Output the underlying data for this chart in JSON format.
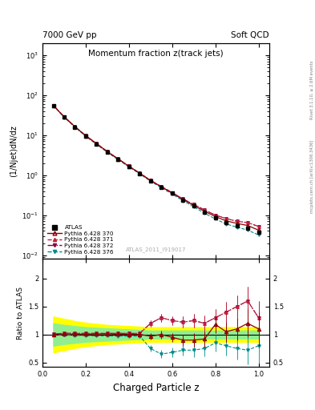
{
  "title_main": "Momentum fraction z(track jets)",
  "header_left": "7000 GeV pp",
  "header_right": "Soft QCD",
  "watermark": "ATLAS_2011_I919017",
  "right_label_top": "Rivet 3.1.10, ≥ 2.6M events",
  "right_label_bot": "mcplots.cern.ch [arXiv:1306.3436]",
  "ylabel_main": "(1/Njet)dN/dz",
  "ylabel_ratio": "Ratio to ATLAS",
  "xlabel": "Charged Particle z",
  "xlim": [
    0.0,
    1.05
  ],
  "ylim_main": [
    0.008,
    2000
  ],
  "ylim_ratio": [
    0.42,
    2.35
  ],
  "z_values": [
    0.05,
    0.1,
    0.15,
    0.2,
    0.25,
    0.3,
    0.35,
    0.4,
    0.45,
    0.5,
    0.55,
    0.6,
    0.65,
    0.7,
    0.75,
    0.8,
    0.85,
    0.9,
    0.95,
    1.0
  ],
  "atlas_y": [
    55,
    28,
    16,
    9.5,
    6.0,
    3.8,
    2.5,
    1.65,
    1.1,
    0.72,
    0.5,
    0.35,
    0.24,
    0.17,
    0.12,
    0.085,
    0.065,
    0.055,
    0.048,
    0.038
  ],
  "atlas_yerr": [
    3.5,
    1.8,
    1.0,
    0.6,
    0.38,
    0.24,
    0.16,
    0.1,
    0.07,
    0.045,
    0.032,
    0.022,
    0.015,
    0.011,
    0.008,
    0.006,
    0.005,
    0.004,
    0.004,
    0.003
  ],
  "py370_y": [
    55,
    28.5,
    16.2,
    9.6,
    6.1,
    3.85,
    2.52,
    1.66,
    1.11,
    0.73,
    0.51,
    0.355,
    0.245,
    0.175,
    0.125,
    0.092,
    0.072,
    0.062,
    0.055,
    0.042
  ],
  "py371_y": [
    55.5,
    28.8,
    16.4,
    9.7,
    6.15,
    3.9,
    2.55,
    1.68,
    1.12,
    0.74,
    0.52,
    0.365,
    0.255,
    0.185,
    0.135,
    0.1,
    0.082,
    0.07,
    0.065,
    0.052
  ],
  "py372_y": [
    55.5,
    28.8,
    16.4,
    9.7,
    6.15,
    3.9,
    2.55,
    1.68,
    1.12,
    0.74,
    0.52,
    0.365,
    0.255,
    0.185,
    0.135,
    0.1,
    0.082,
    0.07,
    0.065,
    0.052
  ],
  "py376_y": [
    54.5,
    27.8,
    15.8,
    9.3,
    5.85,
    3.7,
    2.43,
    1.6,
    1.07,
    0.7,
    0.485,
    0.335,
    0.23,
    0.162,
    0.112,
    0.08,
    0.06,
    0.05,
    0.042,
    0.032
  ],
  "py370_ratio": [
    0.998,
    1.01,
    1.005,
    1.005,
    1.008,
    1.01,
    1.005,
    1.003,
    1.002,
    0.97,
    1.0,
    0.95,
    0.9,
    0.9,
    0.92,
    1.18,
    1.05,
    1.1,
    1.2,
    1.1
  ],
  "py371_ratio": [
    1.005,
    1.025,
    1.02,
    1.02,
    1.02,
    1.02,
    1.02,
    1.02,
    1.02,
    1.2,
    1.3,
    1.25,
    1.22,
    1.25,
    1.2,
    1.3,
    1.4,
    1.5,
    1.6,
    1.3
  ],
  "py372_ratio": [
    1.005,
    1.025,
    1.02,
    1.02,
    1.02,
    1.02,
    1.02,
    1.02,
    1.02,
    1.2,
    1.3,
    1.25,
    1.22,
    1.25,
    1.2,
    1.3,
    1.4,
    1.5,
    1.6,
    1.3
  ],
  "py376_ratio": [
    0.992,
    0.99,
    0.985,
    0.98,
    0.975,
    0.975,
    0.972,
    0.97,
    0.97,
    0.75,
    0.65,
    0.68,
    0.72,
    0.72,
    0.75,
    0.85,
    0.8,
    0.75,
    0.72,
    0.8
  ],
  "py370_ratio_err": [
    0.02,
    0.02,
    0.02,
    0.02,
    0.02,
    0.02,
    0.025,
    0.03,
    0.035,
    0.06,
    0.07,
    0.08,
    0.1,
    0.12,
    0.14,
    0.15,
    0.18,
    0.2,
    0.25,
    0.3
  ],
  "py371_ratio_err": [
    0.02,
    0.02,
    0.02,
    0.02,
    0.02,
    0.02,
    0.025,
    0.03,
    0.035,
    0.06,
    0.07,
    0.08,
    0.1,
    0.12,
    0.14,
    0.15,
    0.18,
    0.2,
    0.25,
    0.3
  ],
  "py372_ratio_err": [
    0.02,
    0.02,
    0.02,
    0.02,
    0.02,
    0.02,
    0.025,
    0.03,
    0.035,
    0.06,
    0.07,
    0.08,
    0.1,
    0.12,
    0.14,
    0.15,
    0.18,
    0.2,
    0.25,
    0.3
  ],
  "py376_ratio_err": [
    0.02,
    0.02,
    0.02,
    0.02,
    0.02,
    0.02,
    0.025,
    0.03,
    0.035,
    0.06,
    0.07,
    0.08,
    0.1,
    0.12,
    0.14,
    0.15,
    0.18,
    0.2,
    0.25,
    0.3
  ],
  "band_z": [
    0.05,
    0.1,
    0.15,
    0.2,
    0.25,
    0.3,
    0.35,
    0.4,
    0.45,
    0.5,
    0.55,
    0.6,
    0.65,
    0.7,
    0.75,
    0.8,
    0.85,
    0.9,
    0.95,
    1.0
  ],
  "band_yellow_lo": [
    0.68,
    0.72,
    0.76,
    0.79,
    0.81,
    0.83,
    0.84,
    0.85,
    0.86,
    0.87,
    0.87,
    0.87,
    0.87,
    0.87,
    0.87,
    0.87,
    0.87,
    0.87,
    0.87,
    0.87
  ],
  "band_yellow_hi": [
    1.32,
    1.28,
    1.24,
    1.21,
    1.19,
    1.17,
    1.16,
    1.15,
    1.14,
    1.13,
    1.13,
    1.13,
    1.13,
    1.13,
    1.13,
    1.13,
    1.13,
    1.13,
    1.13,
    1.13
  ],
  "band_green_lo": [
    0.8,
    0.83,
    0.85,
    0.87,
    0.88,
    0.89,
    0.9,
    0.91,
    0.92,
    0.93,
    0.93,
    0.93,
    0.93,
    0.93,
    0.93,
    0.93,
    0.93,
    0.93,
    0.93,
    0.93
  ],
  "band_green_hi": [
    1.2,
    1.17,
    1.15,
    1.13,
    1.12,
    1.11,
    1.1,
    1.09,
    1.08,
    1.07,
    1.07,
    1.07,
    1.07,
    1.07,
    1.07,
    1.07,
    1.07,
    1.07,
    1.07,
    1.07
  ],
  "color_370": "#8B0000",
  "color_371": "#C41E3A",
  "color_372": "#8B0040",
  "color_376": "#008B8B",
  "band_yellow": "#FFFF00",
  "band_green": "#90EE90"
}
